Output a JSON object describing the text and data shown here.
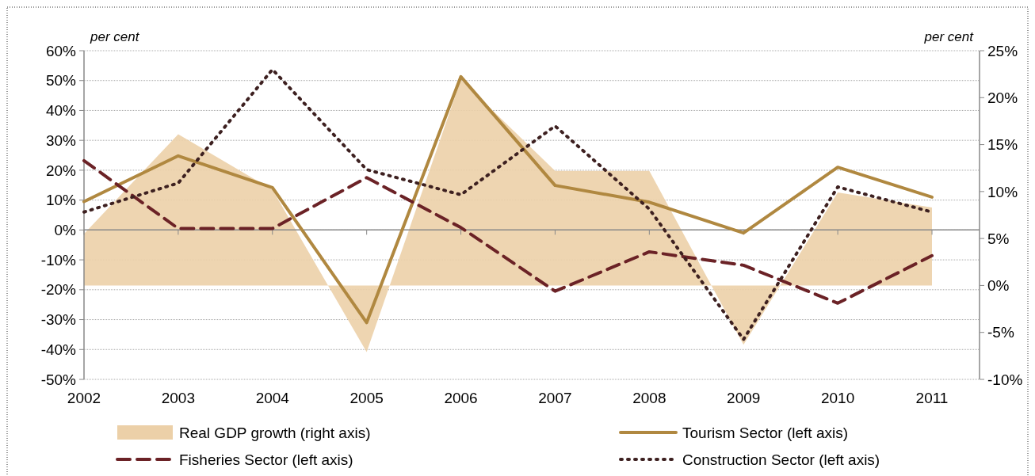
{
  "chart_data": {
    "type": "line",
    "categories": [
      "2002",
      "2003",
      "2004",
      "2005",
      "2006",
      "2007",
      "2008",
      "2009",
      "2010",
      "2011"
    ],
    "ylabel": "per cent",
    "y2label": "per cent",
    "ylim": [
      -0.5,
      0.6
    ],
    "yticks": [
      {
        "value": -0.5,
        "label": "-50%"
      },
      {
        "value": -0.4,
        "label": "-40%"
      },
      {
        "value": -0.3,
        "label": "-30%"
      },
      {
        "value": -0.2,
        "label": "-20%"
      },
      {
        "value": -0.1,
        "label": "-10%"
      },
      {
        "value": 0,
        "label": "0%"
      },
      {
        "value": 0.1,
        "label": "10%"
      },
      {
        "value": 0.2,
        "label": "20%"
      },
      {
        "value": 0.3,
        "label": "30%"
      },
      {
        "value": 0.4,
        "label": "40%"
      },
      {
        "value": 0.5,
        "label": "50%"
      },
      {
        "value": 0.6,
        "label": "60%"
      }
    ],
    "y2lim": [
      -0.1,
      0.25
    ],
    "y2ticks": [
      {
        "value": -0.1,
        "label": "-10%"
      },
      {
        "value": -0.05,
        "label": "-5%"
      },
      {
        "value": 0,
        "label": "0%"
      },
      {
        "value": 0.05,
        "label": "5%"
      },
      {
        "value": 0.1,
        "label": "10%"
      },
      {
        "value": 0.15,
        "label": "15%"
      },
      {
        "value": 0.2,
        "label": "20%"
      },
      {
        "value": 0.25,
        "label": "25%"
      }
    ],
    "grid": "y",
    "legend": "bottom",
    "series": [
      {
        "name": "Real GDP growth (right axis)",
        "type": "area",
        "axis": "y2",
        "color": "#ecd0a8",
        "values": [
          0.055,
          0.161,
          0.102,
          -0.071,
          0.219,
          0.122,
          0.122,
          -0.063,
          0.099,
          0.083
        ]
      },
      {
        "name": "Tourism Sector (left axis)",
        "color": "#b08840",
        "line_style": "solid",
        "values": [
          0.095,
          0.248,
          0.142,
          -0.31,
          0.513,
          0.149,
          0.093,
          -0.01,
          0.21,
          0.11
        ]
      },
      {
        "name": "Fisheries Sector (left axis)",
        "color": "#6b2226",
        "line_style": "dashed",
        "values": [
          0.232,
          0.005,
          0.005,
          0.175,
          0.008,
          -0.205,
          -0.073,
          -0.118,
          -0.245,
          -0.086
        ]
      },
      {
        "name": "Construction Sector (left axis)",
        "color": "#3d2020",
        "line_style": "dotted",
        "values": [
          0.06,
          0.157,
          0.537,
          0.202,
          0.118,
          0.348,
          0.07,
          -0.366,
          0.144,
          0.06
        ]
      }
    ]
  }
}
